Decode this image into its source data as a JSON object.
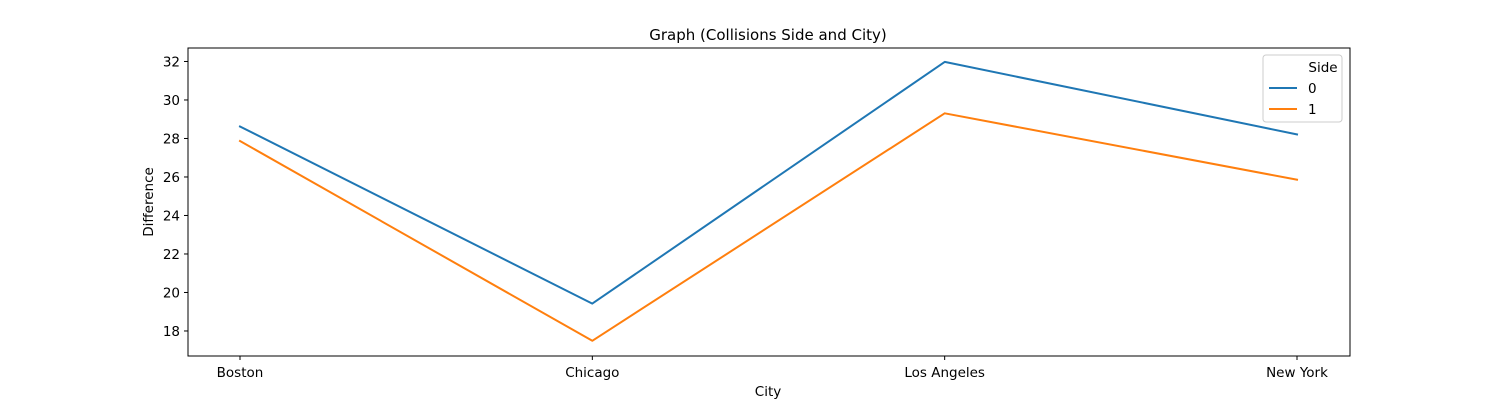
{
  "chart_data": {
    "type": "line",
    "title": "Graph (Collisions Side and City)",
    "xlabel": "City",
    "ylabel": "Difference",
    "categories": [
      "Boston",
      "Chicago",
      "Los Angeles",
      "New York"
    ],
    "series": [
      {
        "name": "0",
        "values": [
          28.62,
          19.42,
          31.98,
          28.21
        ],
        "color": "#1f77b4"
      },
      {
        "name": "1",
        "values": [
          27.87,
          17.49,
          29.31,
          25.86
        ],
        "color": "#ff7f0e"
      }
    ],
    "yticks": [
      18,
      20,
      22,
      24,
      26,
      28,
      30,
      32
    ],
    "ylim": [
      16.7,
      32.7
    ],
    "legend": {
      "title": "Side",
      "position": "top-right"
    },
    "grid": false
  }
}
